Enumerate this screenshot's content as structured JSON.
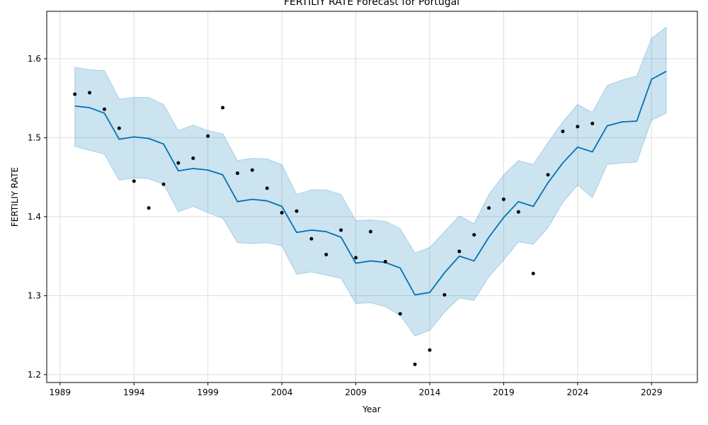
{
  "chart_data": {
    "type": "line",
    "title": "FERTILIY RATE Forecast for Portugal",
    "xlabel": "Year",
    "ylabel": "FERTILIY RATE",
    "xlim": [
      1988.1,
      2032.1
    ],
    "ylim": [
      1.19,
      1.66
    ],
    "grid": true,
    "x_ticks": [
      1989,
      1994,
      1999,
      2004,
      2009,
      2014,
      2019,
      2024,
      2029
    ],
    "x_tick_labels": [
      "1989",
      "1994",
      "1999",
      "2004",
      "2009",
      "2014",
      "2019",
      "2024",
      "2029"
    ],
    "y_ticks": [
      1.2,
      1.3,
      1.4,
      1.5,
      1.6
    ],
    "y_tick_labels": [
      "1.2",
      "1.3",
      "1.4",
      "1.5",
      "1.6"
    ],
    "series": [
      {
        "role": "observed",
        "x": [
          1990,
          1991,
          1992,
          1993,
          1994,
          1995,
          1996,
          1997,
          1998,
          1999,
          2000,
          2001,
          2002,
          2003,
          2004,
          2005,
          2006,
          2007,
          2008,
          2009,
          2010,
          2011,
          2012,
          2013,
          2014,
          2015,
          2016,
          2017,
          2018,
          2019,
          2020,
          2021,
          2022,
          2023,
          2024,
          2025
        ],
        "values": [
          1.555,
          1.557,
          1.536,
          1.512,
          1.445,
          1.411,
          1.441,
          1.468,
          1.474,
          1.502,
          1.538,
          1.455,
          1.459,
          1.436,
          1.405,
          1.407,
          1.372,
          1.352,
          1.383,
          1.348,
          1.381,
          1.343,
          1.277,
          1.213,
          1.231,
          1.301,
          1.356,
          1.377,
          1.411,
          1.422,
          1.406,
          1.328,
          1.453,
          1.508,
          1.514,
          1.518
        ]
      },
      {
        "role": "forecast",
        "x": [
          1990,
          1991,
          1992,
          1993,
          1994,
          1995,
          1996,
          1997,
          1998,
          1999,
          2000,
          2001,
          2002,
          2003,
          2004,
          2005,
          2006,
          2007,
          2008,
          2009,
          2010,
          2011,
          2012,
          2013,
          2014,
          2015,
          2016,
          2017,
          2018,
          2019,
          2020,
          2021,
          2022,
          2023,
          2024,
          2025,
          2026,
          2027,
          2028,
          2029,
          2030
        ],
        "values": [
          1.54,
          1.538,
          1.531,
          1.498,
          1.501,
          1.499,
          1.492,
          1.458,
          1.461,
          1.459,
          1.453,
          1.419,
          1.422,
          1.42,
          1.413,
          1.38,
          1.383,
          1.381,
          1.374,
          1.341,
          1.344,
          1.342,
          1.335,
          1.301,
          1.304,
          1.329,
          1.35,
          1.344,
          1.374,
          1.399,
          1.419,
          1.413,
          1.443,
          1.468,
          1.488,
          1.482,
          1.515,
          1.52,
          1.521,
          1.574,
          1.584
        ],
        "lower": [
          1.489,
          1.484,
          1.479,
          1.446,
          1.449,
          1.448,
          1.441,
          1.406,
          1.413,
          1.405,
          1.398,
          1.367,
          1.366,
          1.367,
          1.363,
          1.327,
          1.33,
          1.326,
          1.322,
          1.29,
          1.291,
          1.286,
          1.275,
          1.249,
          1.256,
          1.279,
          1.297,
          1.294,
          1.324,
          1.345,
          1.368,
          1.365,
          1.386,
          1.418,
          1.44,
          1.424,
          1.466,
          1.468,
          1.469,
          1.522,
          1.531
        ],
        "upper": [
          1.589,
          1.586,
          1.585,
          1.549,
          1.551,
          1.551,
          1.542,
          1.509,
          1.516,
          1.509,
          1.505,
          1.471,
          1.474,
          1.473,
          1.466,
          1.428,
          1.434,
          1.434,
          1.428,
          1.395,
          1.396,
          1.394,
          1.385,
          1.354,
          1.361,
          1.381,
          1.401,
          1.391,
          1.428,
          1.453,
          1.471,
          1.466,
          1.494,
          1.52,
          1.542,
          1.532,
          1.566,
          1.573,
          1.578,
          1.626,
          1.64
        ]
      }
    ],
    "colors": {
      "observed": "#000000",
      "forecast": "#0072B2",
      "interval": "#0072B2",
      "grid": "#dddddd"
    }
  }
}
